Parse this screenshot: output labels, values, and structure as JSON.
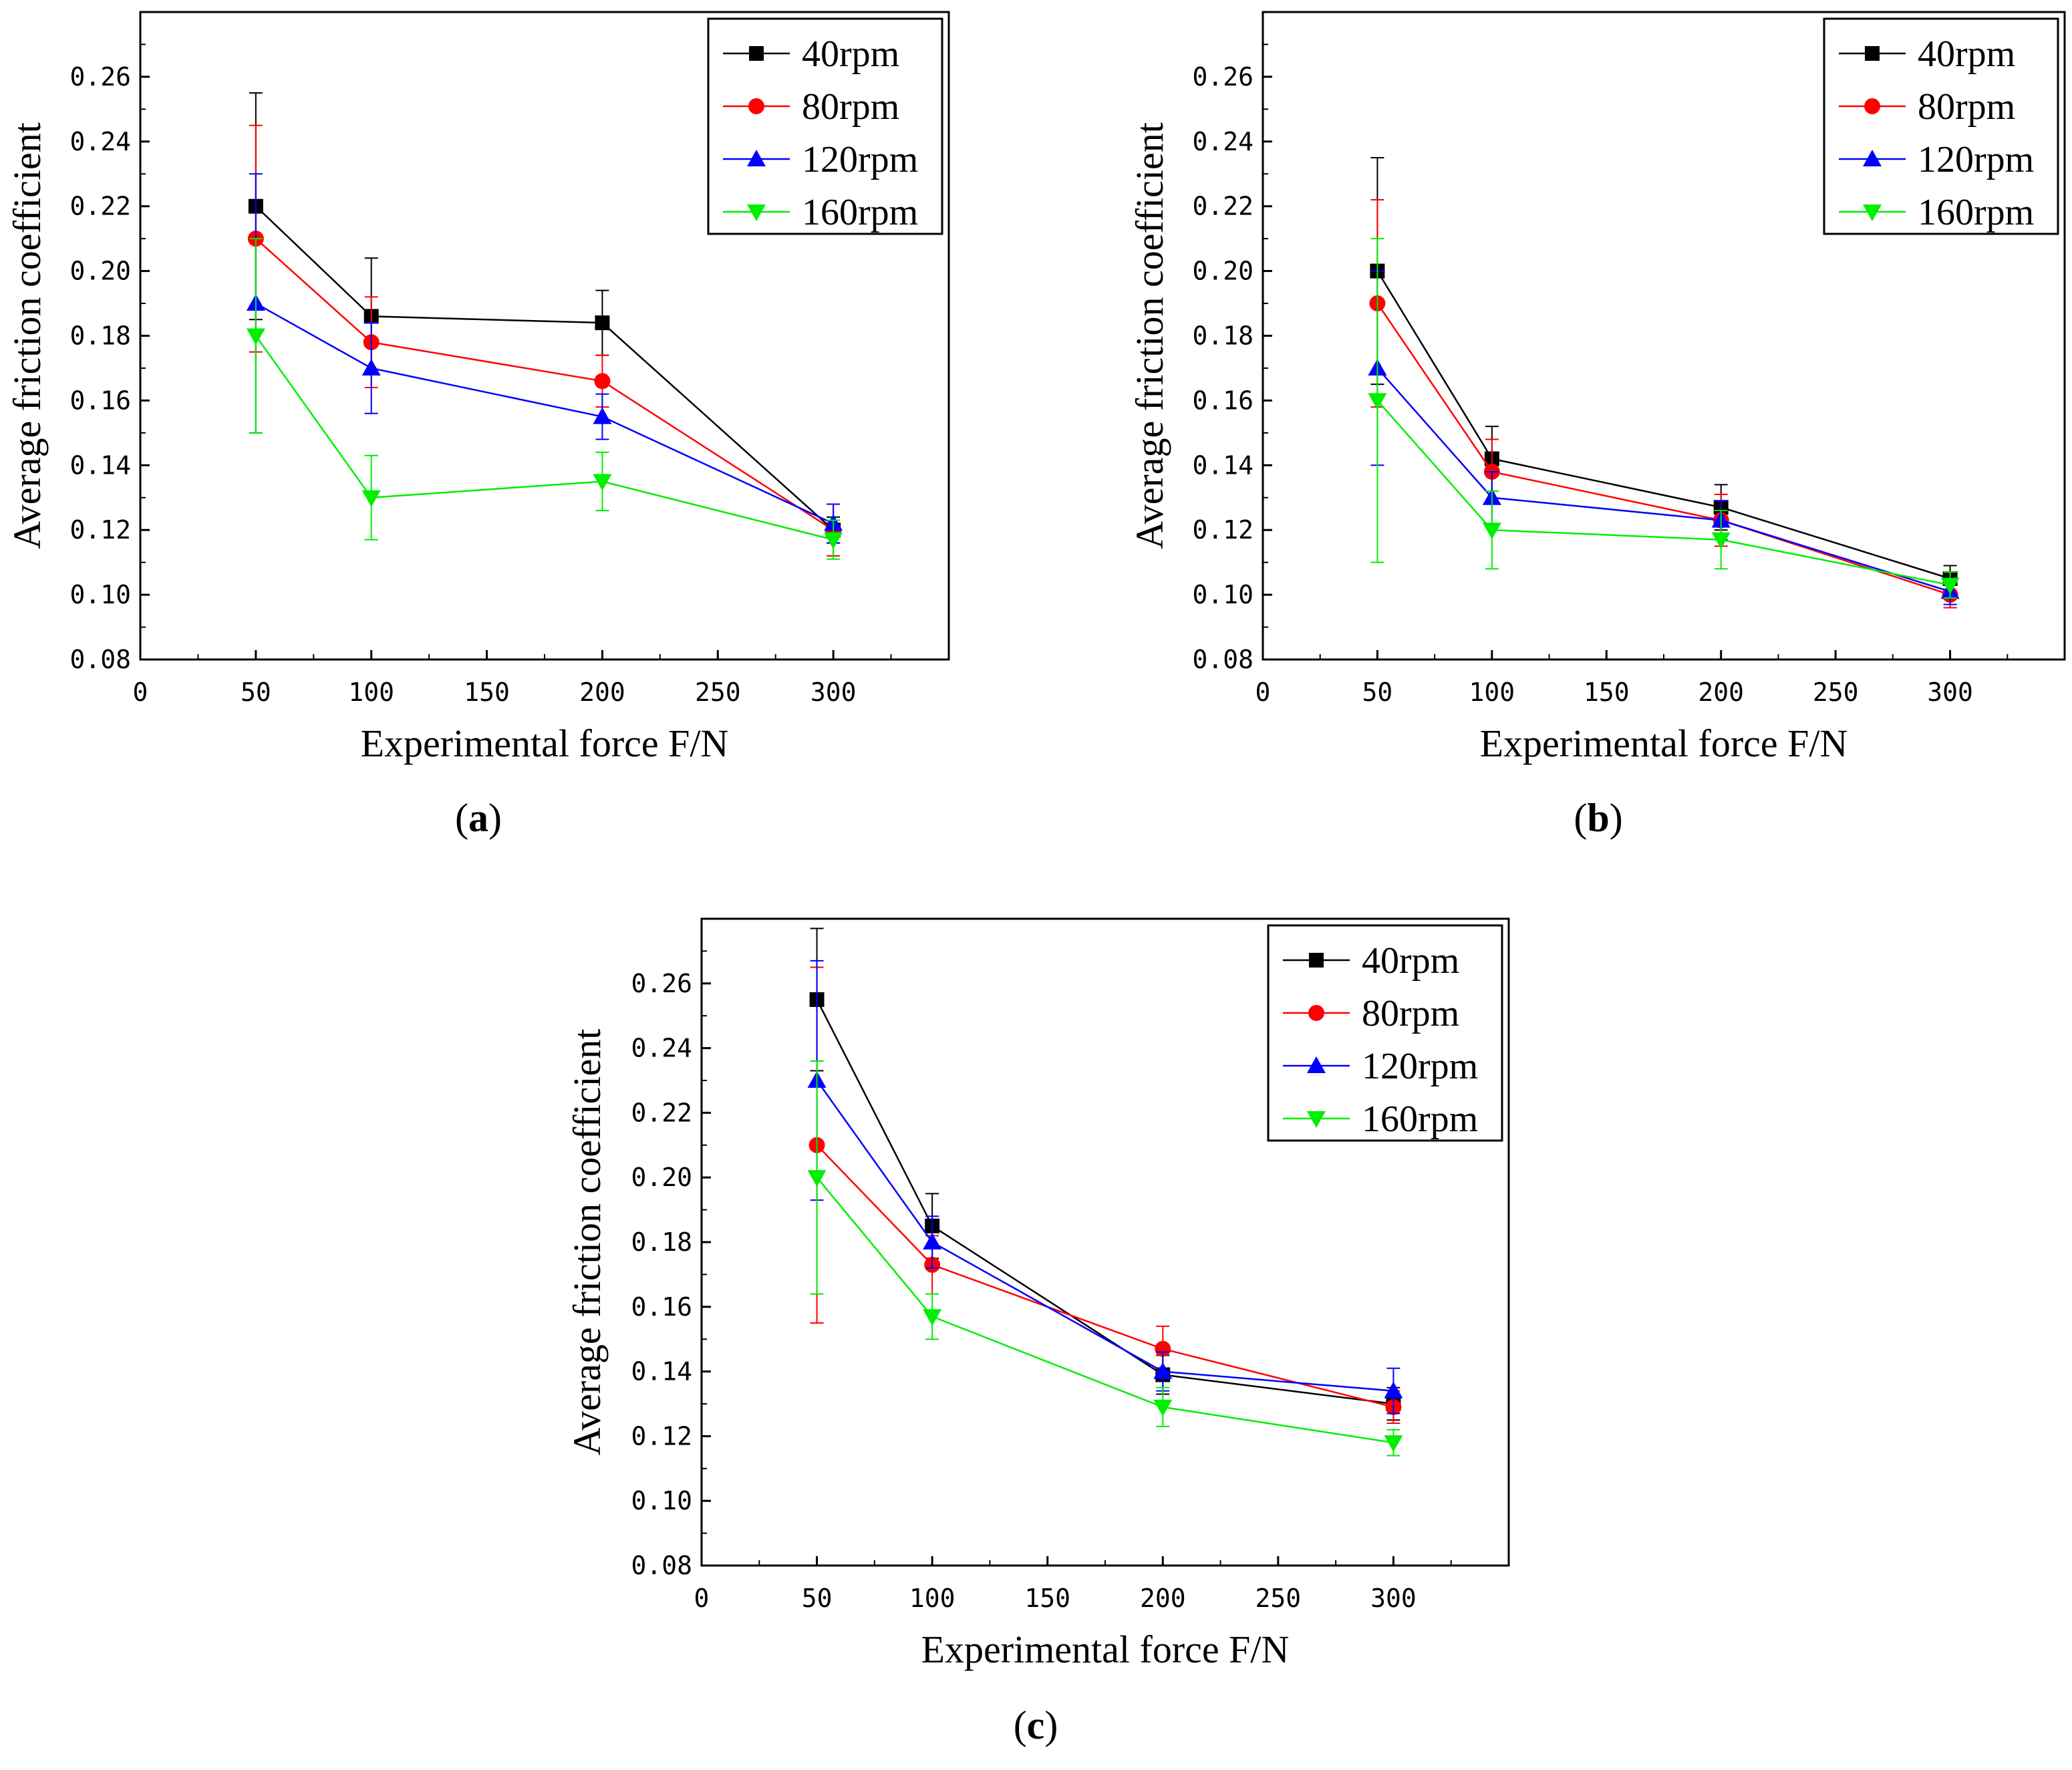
{
  "chart_data": [
    {
      "type": "line",
      "panel": "a",
      "xlabel": "Experimental force F/N",
      "ylabel": "Average friction coefficient",
      "xlim": [
        0,
        350
      ],
      "ylim": [
        0.08,
        0.28
      ],
      "xticks": [
        "0",
        "50",
        "100",
        "150",
        "200",
        "250",
        "300"
      ],
      "yticks": [
        "0.08",
        "0.10",
        "0.12",
        "0.14",
        "0.16",
        "0.18",
        "0.20",
        "0.22",
        "0.24",
        "0.26"
      ],
      "legend_position": "top-right",
      "x": [
        50,
        100,
        200,
        300
      ],
      "series": [
        {
          "name": "40rpm",
          "color": "#000000",
          "marker": "square",
          "values": [
            0.22,
            0.186,
            0.184,
            0.12
          ],
          "err": [
            0.035,
            0.018,
            0.01,
            0.004
          ]
        },
        {
          "name": "80rpm",
          "color": "#ff0000",
          "marker": "circle",
          "values": [
            0.21,
            0.178,
            0.166,
            0.12
          ],
          "err": [
            0.035,
            0.014,
            0.008,
            0.008
          ]
        },
        {
          "name": "120rpm",
          "color": "#0000ff",
          "marker": "triangle-up",
          "values": [
            0.19,
            0.17,
            0.155,
            0.122
          ],
          "err": [
            0.04,
            0.014,
            0.007,
            0.006
          ]
        },
        {
          "name": "160rpm",
          "color": "#00ee00",
          "marker": "triangle-down",
          "values": [
            0.18,
            0.13,
            0.135,
            0.117
          ],
          "err": [
            0.03,
            0.013,
            0.009,
            0.006
          ]
        }
      ],
      "caption": {
        "open": "(",
        "letter": "a",
        "close": ")"
      }
    },
    {
      "type": "line",
      "panel": "b",
      "xlabel": "Experimental force F/N",
      "ylabel": "Average friction coefficient",
      "xlim": [
        0,
        350
      ],
      "ylim": [
        0.08,
        0.28
      ],
      "xticks": [
        "0",
        "50",
        "100",
        "150",
        "200",
        "250",
        "300"
      ],
      "yticks": [
        "0.08",
        "0.10",
        "0.12",
        "0.14",
        "0.16",
        "0.18",
        "0.20",
        "0.22",
        "0.24",
        "0.26"
      ],
      "legend_position": "top-right",
      "x": [
        50,
        100,
        200,
        300
      ],
      "series": [
        {
          "name": "40rpm",
          "color": "#000000",
          "marker": "square",
          "values": [
            0.2,
            0.142,
            0.127,
            0.105
          ],
          "err": [
            0.035,
            0.01,
            0.007,
            0.004
          ]
        },
        {
          "name": "80rpm",
          "color": "#ff0000",
          "marker": "circle",
          "values": [
            0.19,
            0.138,
            0.123,
            0.1
          ],
          "err": [
            0.032,
            0.01,
            0.008,
            0.004
          ]
        },
        {
          "name": "120rpm",
          "color": "#0000ff",
          "marker": "triangle-up",
          "values": [
            0.17,
            0.13,
            0.123,
            0.101
          ],
          "err": [
            0.03,
            0.008,
            0.006,
            0.004
          ]
        },
        {
          "name": "160rpm",
          "color": "#00ee00",
          "marker": "triangle-down",
          "values": [
            0.16,
            0.12,
            0.117,
            0.103
          ],
          "err": [
            0.05,
            0.012,
            0.009,
            0.004
          ]
        }
      ],
      "caption": {
        "open": "(",
        "letter": "b",
        "close": ")"
      }
    },
    {
      "type": "line",
      "panel": "c",
      "xlabel": "Experimental force F/N",
      "ylabel": "Average friction coefficient",
      "xlim": [
        0,
        350
      ],
      "ylim": [
        0.08,
        0.28
      ],
      "xticks": [
        "0",
        "50",
        "100",
        "150",
        "200",
        "250",
        "300"
      ],
      "yticks": [
        "0.08",
        "0.10",
        "0.12",
        "0.14",
        "0.16",
        "0.18",
        "0.20",
        "0.22",
        "0.24",
        "0.26"
      ],
      "legend_position": "top-right",
      "x": [
        50,
        100,
        200,
        300
      ],
      "series": [
        {
          "name": "40rpm",
          "color": "#000000",
          "marker": "square",
          "values": [
            0.255,
            0.185,
            0.139,
            0.13
          ],
          "err": [
            0.022,
            0.01,
            0.006,
            0.005
          ]
        },
        {
          "name": "80rpm",
          "color": "#ff0000",
          "marker": "circle",
          "values": [
            0.21,
            0.173,
            0.147,
            0.129
          ],
          "err": [
            0.055,
            0.009,
            0.007,
            0.005
          ]
        },
        {
          "name": "120rpm",
          "color": "#0000ff",
          "marker": "triangle-up",
          "values": [
            0.23,
            0.18,
            0.14,
            0.134
          ],
          "err": [
            0.037,
            0.008,
            0.006,
            0.007
          ]
        },
        {
          "name": "160rpm",
          "color": "#00ee00",
          "marker": "triangle-down",
          "values": [
            0.2,
            0.157,
            0.129,
            0.118
          ],
          "err": [
            0.036,
            0.007,
            0.006,
            0.004
          ]
        }
      ],
      "caption": {
        "open": "(",
        "letter": "c",
        "close": ")"
      }
    }
  ]
}
